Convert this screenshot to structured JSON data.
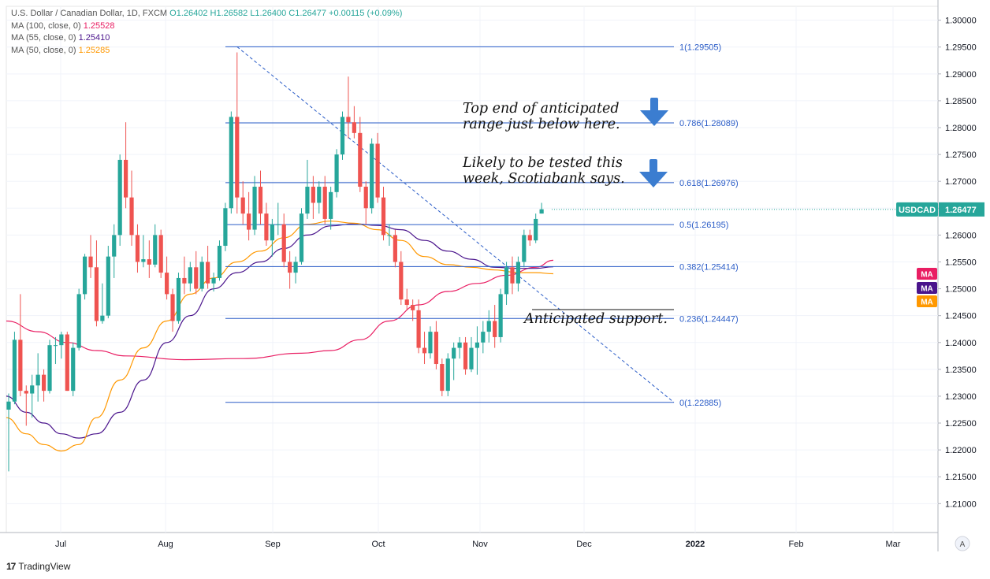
{
  "header": {
    "symbol_line": "U.S. Dollar / Canadian Dollar, 1D, FXCM",
    "open": "O1.26402",
    "high": "H1.26582",
    "low": "L1.26400",
    "close": "C1.26477",
    "change": "+0.00115 (+0.09%)",
    "ma100": {
      "label": "MA (100, close, 0)",
      "value": "1.25528",
      "color": "#e91e63"
    },
    "ma55": {
      "label": "MA (55, close, 0)",
      "value": "1.25410",
      "color": "#4a148c"
    },
    "ma50": {
      "label": "MA (50, close, 0)",
      "value": "1.25285",
      "color": "#ff9800"
    }
  },
  "annotations": {
    "top_end": "Top end of anticipated\nrange just below here.",
    "likely_test": "Likely to be tested this\nweek, Scotiabank says.",
    "support": "Anticipated support."
  },
  "branding": {
    "name": "TradingView"
  },
  "chart_data": {
    "type": "candlestick",
    "title": "U.S. Dollar / Canadian Dollar, 1D, FXCM",
    "symbol": "USDCAD",
    "last_price": 1.26477,
    "x_ticks": [
      "Jul",
      "Aug",
      "Sep",
      "Oct",
      "Nov",
      "Dec",
      "2022",
      "Feb",
      "Mar"
    ],
    "y_ticks": [
      1.21,
      1.215,
      1.22,
      1.225,
      1.23,
      1.235,
      1.24,
      1.245,
      1.25,
      1.255,
      1.26,
      1.265,
      1.27,
      1.275,
      1.28,
      1.285,
      1.29,
      1.295,
      1.3
    ],
    "y_tick_labels": [
      "1.21000",
      "1.21500",
      "1.22000",
      "1.22500",
      "1.23000",
      "1.23500",
      "1.24000",
      "1.24500",
      "1.25000",
      "1.25500",
      "1.26000",
      "1.26500",
      "1.27000",
      "1.27500",
      "1.28000",
      "1.28500",
      "1.29000",
      "1.29500",
      "1.30000"
    ],
    "ylim": [
      1.2055,
      1.302
    ],
    "grid": true,
    "fib_levels": [
      {
        "ratio": "1",
        "value": 1.29505,
        "label": "1(1.29505)"
      },
      {
        "ratio": "0.786",
        "value": 1.28089,
        "label": "0.786(1.28089)"
      },
      {
        "ratio": "0.618",
        "value": 1.26976,
        "label": "0.618(1.26976)"
      },
      {
        "ratio": "0.5",
        "value": 1.26195,
        "label": "0.5(1.26195)"
      },
      {
        "ratio": "0.382",
        "value": 1.25414,
        "label": "0.382(1.25414)"
      },
      {
        "ratio": "0.236",
        "value": 1.24447,
        "label": "0.236(1.24447)"
      },
      {
        "ratio": "0",
        "value": 1.22885,
        "label": "0(1.22885)"
      }
    ],
    "ma_tags": [
      "MA",
      "MA",
      "MA"
    ],
    "candles": [
      [
        1.2275,
        1.2305,
        1.216,
        1.229
      ],
      [
        1.229,
        1.242,
        1.2285,
        1.2405
      ],
      [
        1.2405,
        1.249,
        1.23,
        1.231
      ],
      [
        1.231,
        1.232,
        1.2245,
        1.2305
      ],
      [
        1.2305,
        1.234,
        1.226,
        1.232
      ],
      [
        1.232,
        1.238,
        1.229,
        1.234
      ],
      [
        1.234,
        1.235,
        1.229,
        1.231
      ],
      [
        1.231,
        1.2405,
        1.2305,
        1.2395
      ],
      [
        1.2395,
        1.241,
        1.236,
        1.2395
      ],
      [
        1.2395,
        1.242,
        1.237,
        1.2415
      ],
      [
        1.2415,
        1.242,
        1.231,
        1.231
      ],
      [
        1.231,
        1.24,
        1.23,
        1.239
      ],
      [
        1.239,
        1.25,
        1.2385,
        1.249
      ],
      [
        1.249,
        1.2565,
        1.248,
        1.256
      ],
      [
        1.256,
        1.26,
        1.252,
        1.254
      ],
      [
        1.254,
        1.259,
        1.243,
        1.244
      ],
      [
        1.244,
        1.251,
        1.2435,
        1.245
      ],
      [
        1.245,
        1.258,
        1.2445,
        1.256
      ],
      [
        1.256,
        1.262,
        1.252,
        1.26
      ],
      [
        1.26,
        1.275,
        1.258,
        1.274
      ],
      [
        1.274,
        1.281,
        1.265,
        1.267
      ],
      [
        1.267,
        1.272,
        1.258,
        1.26
      ],
      [
        1.26,
        1.262,
        1.253,
        1.255
      ],
      [
        1.255,
        1.26,
        1.254,
        1.2555
      ],
      [
        1.2555,
        1.259,
        1.252,
        1.2545
      ],
      [
        1.2545,
        1.262,
        1.254,
        1.26
      ],
      [
        1.26,
        1.261,
        1.252,
        1.253
      ],
      [
        1.253,
        1.256,
        1.248,
        1.249
      ],
      [
        1.249,
        1.25,
        1.242,
        1.244
      ],
      [
        1.244,
        1.253,
        1.2435,
        1.252
      ],
      [
        1.252,
        1.256,
        1.249,
        1.251
      ],
      [
        1.251,
        1.255,
        1.2495,
        1.254
      ],
      [
        1.254,
        1.257,
        1.249,
        1.25
      ],
      [
        1.25,
        1.256,
        1.2495,
        1.255
      ],
      [
        1.255,
        1.258,
        1.25,
        1.251
      ],
      [
        1.251,
        1.253,
        1.2495,
        1.252
      ],
      [
        1.252,
        1.259,
        1.2515,
        1.258
      ],
      [
        1.258,
        1.266,
        1.257,
        1.265
      ],
      [
        1.265,
        1.283,
        1.264,
        1.282
      ],
      [
        1.282,
        1.294,
        1.264,
        1.267
      ],
      [
        1.267,
        1.27,
        1.262,
        1.264
      ],
      [
        1.264,
        1.268,
        1.259,
        1.261
      ],
      [
        1.261,
        1.271,
        1.26,
        1.269
      ],
      [
        1.269,
        1.272,
        1.262,
        1.264
      ],
      [
        1.264,
        1.266,
        1.258,
        1.259
      ],
      [
        1.259,
        1.263,
        1.256,
        1.262
      ],
      [
        1.262,
        1.266,
        1.26,
        1.262
      ],
      [
        1.262,
        1.264,
        1.254,
        1.255
      ],
      [
        1.255,
        1.257,
        1.25,
        1.253
      ],
      [
        1.253,
        1.256,
        1.251,
        1.255
      ],
      [
        1.255,
        1.265,
        1.2545,
        1.264
      ],
      [
        1.264,
        1.274,
        1.263,
        1.269
      ],
      [
        1.269,
        1.271,
        1.263,
        1.266
      ],
      [
        1.266,
        1.27,
        1.264,
        1.269
      ],
      [
        1.269,
        1.271,
        1.262,
        1.263
      ],
      [
        1.263,
        1.269,
        1.261,
        1.268
      ],
      [
        1.268,
        1.276,
        1.267,
        1.275
      ],
      [
        1.275,
        1.283,
        1.274,
        1.282
      ],
      [
        1.282,
        1.2895,
        1.278,
        1.281
      ],
      [
        1.281,
        1.284,
        1.278,
        1.279
      ],
      [
        1.279,
        1.282,
        1.268,
        1.269
      ],
      [
        1.269,
        1.27,
        1.262,
        1.265
      ],
      [
        1.265,
        1.278,
        1.264,
        1.277
      ],
      [
        1.277,
        1.279,
        1.266,
        1.267
      ],
      [
        1.267,
        1.269,
        1.259,
        1.26
      ],
      [
        1.26,
        1.262,
        1.258,
        1.26
      ],
      [
        1.26,
        1.261,
        1.254,
        1.255
      ],
      [
        1.255,
        1.257,
        1.247,
        1.248
      ],
      [
        1.248,
        1.25,
        1.246,
        1.247
      ],
      [
        1.247,
        1.248,
        1.244,
        1.246
      ],
      [
        1.246,
        1.248,
        1.238,
        1.239
      ],
      [
        1.239,
        1.242,
        1.236,
        1.238
      ],
      [
        1.238,
        1.243,
        1.237,
        1.242
      ],
      [
        1.242,
        1.244,
        1.235,
        1.236
      ],
      [
        1.236,
        1.237,
        1.23,
        1.231
      ],
      [
        1.231,
        1.238,
        1.23,
        1.237
      ],
      [
        1.237,
        1.24,
        1.233,
        1.239
      ],
      [
        1.239,
        1.241,
        1.237,
        1.24
      ],
      [
        1.24,
        1.241,
        1.234,
        1.235
      ],
      [
        1.235,
        1.241,
        1.2345,
        1.239
      ],
      [
        1.239,
        1.243,
        1.234,
        1.24
      ],
      [
        1.24,
        1.244,
        1.238,
        1.242
      ],
      [
        1.242,
        1.246,
        1.24,
        1.244
      ],
      [
        1.244,
        1.247,
        1.239,
        1.241
      ],
      [
        1.241,
        1.25,
        1.24,
        1.249
      ],
      [
        1.249,
        1.255,
        1.247,
        1.254
      ],
      [
        1.254,
        1.256,
        1.249,
        1.251
      ],
      [
        1.251,
        1.256,
        1.2495,
        1.255
      ],
      [
        1.255,
        1.261,
        1.254,
        1.26
      ],
      [
        1.26,
        1.261,
        1.258,
        1.259
      ],
      [
        1.259,
        1.264,
        1.2585,
        1.263
      ],
      [
        1.264,
        1.266,
        1.264,
        1.2648
      ]
    ],
    "series": [
      {
        "name": "MA (100, close, 0)",
        "color": "#e91e63",
        "x_index": [
          0,
          5,
          10,
          15,
          20,
          30,
          40,
          50,
          55,
          60,
          65,
          70,
          75,
          80,
          85,
          90,
          93
        ],
        "values": [
          1.244,
          1.242,
          1.24,
          1.2385,
          1.2375,
          1.2368,
          1.237,
          1.238,
          1.2385,
          1.2405,
          1.244,
          1.247,
          1.2495,
          1.251,
          1.2525,
          1.254,
          1.2553
        ]
      },
      {
        "name": "MA (55, close, 0)",
        "color": "#4a148c",
        "x_index": [
          0,
          3,
          6,
          9,
          12,
          15,
          19,
          23,
          27,
          31,
          35,
          39,
          43,
          47,
          51,
          55,
          59,
          63,
          67,
          71,
          75,
          79,
          83,
          87,
          90,
          93
        ],
        "values": [
          1.23,
          1.227,
          1.225,
          1.223,
          1.2222,
          1.223,
          1.227,
          1.233,
          1.24,
          1.245,
          1.25,
          1.253,
          1.255,
          1.2575,
          1.26,
          1.2617,
          1.2621,
          1.2618,
          1.261,
          1.259,
          1.257,
          1.2555,
          1.254,
          1.2538,
          1.2538,
          1.2541
        ]
      },
      {
        "name": "MA (50, close, 0)",
        "color": "#ff9800",
        "x_index": [
          0,
          3,
          6,
          9,
          12,
          15,
          19,
          23,
          27,
          31,
          35,
          39,
          43,
          47,
          51,
          55,
          59,
          63,
          67,
          71,
          75,
          79,
          83,
          87,
          90,
          93
        ],
        "values": [
          1.226,
          1.223,
          1.221,
          1.2198,
          1.221,
          1.226,
          1.233,
          1.239,
          1.244,
          1.249,
          1.252,
          1.255,
          1.257,
          1.2595,
          1.262,
          1.2626,
          1.2622,
          1.261,
          1.259,
          1.256,
          1.2545,
          1.254,
          1.2535,
          1.253,
          1.253,
          1.2528
        ]
      }
    ],
    "trendline": {
      "from": {
        "x_index": 39,
        "y": 1.29505
      },
      "to": {
        "x": "Dec",
        "y": 1.22885
      }
    }
  }
}
